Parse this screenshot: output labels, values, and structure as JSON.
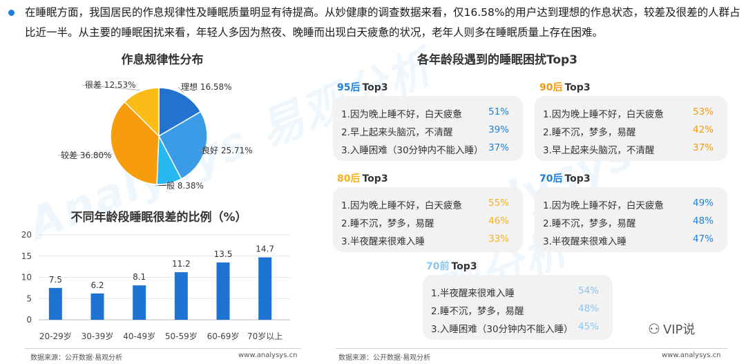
{
  "intro": "在睡眠方面，我国居民的作息规律性及睡眠质量明显有待提高。从妙健康的调查数据来看，仅16.58%的用户达到理想的作息状态，较差及很差的人群占比近一半。从主要的睡眠困扰来看，年轻人多因为熬夜、晚睡而出现白天疲惫的状况，老年人则多在睡眠质量上存在困难。",
  "watermark_text": "Analysys 易观分析",
  "colors": {
    "accent": "#1e7fd8",
    "orange": "#f7a21b",
    "lightblue": "#8ac6f0"
  },
  "chart_data": [
    {
      "type": "pie",
      "title": "作息规律性分布",
      "slices": [
        {
          "label": "理想 16.58%",
          "value": 16.58,
          "color": "#2472cf"
        },
        {
          "label": "良好 25.71%",
          "value": 25.71,
          "color": "#3a9be6"
        },
        {
          "label": "一般 8.38%",
          "value": 8.38,
          "color": "#29b7f0"
        },
        {
          "label": "较差 36.80%",
          "value": 36.8,
          "color": "#f79c0d"
        },
        {
          "label": "很差 12.53%",
          "value": 12.53,
          "color": "#fbbc18"
        }
      ]
    },
    {
      "type": "bar",
      "title": "不同年龄段睡眠很差的比例（%）",
      "categories": [
        "20-29岁",
        "30-39岁",
        "40-49岁",
        "50-59岁",
        "60-69岁",
        "70岁以上"
      ],
      "values": [
        7.5,
        6.2,
        8.1,
        11.2,
        13.5,
        14.7
      ],
      "value_labels": [
        "7.5",
        "6.2",
        "8.1",
        "11.2",
        "13.5",
        "14.7"
      ],
      "ylim": [
        0,
        20
      ],
      "yticks": [
        "0",
        "5",
        "10",
        "15",
        "20"
      ],
      "color": "#1e73d2"
    }
  ],
  "right_title": "各年龄段遇到的睡眠困扰Top3",
  "panels": [
    {
      "year": "95后",
      "suffix": "Top3",
      "year_color": "#1e7fd8",
      "pct_color": "#1e7fd8",
      "items": [
        {
          "text": "1.因为晚上睡不好，白天疲惫",
          "pct": "51%"
        },
        {
          "text": "2.早上起来头脑沉，不清醒",
          "pct": "39%"
        },
        {
          "text": "3.入睡困难（30分钟内不能入睡）",
          "pct": "37%"
        }
      ]
    },
    {
      "year": "90后",
      "suffix": "Top3",
      "year_color": "#f59a0c",
      "pct_color": "#f59a0c",
      "items": [
        {
          "text": "1.因为晚上睡不好，白天疲惫",
          "pct": "53%"
        },
        {
          "text": "2.睡不沉，梦多，易醒",
          "pct": "42%"
        },
        {
          "text": "3.早上起来头脑沉，不清醒",
          "pct": "37%"
        }
      ]
    },
    {
      "year": "80后",
      "suffix": "Top3",
      "year_color": "#f7b21d",
      "pct_color": "#f7b21d",
      "items": [
        {
          "text": "1.因为晚上睡不好，白天疲惫",
          "pct": "55%"
        },
        {
          "text": "2.睡不沉，梦多，易醒",
          "pct": "46%"
        },
        {
          "text": "3.半夜醒来很难入睡",
          "pct": "33%"
        }
      ]
    },
    {
      "year": "70后",
      "suffix": "Top3",
      "year_color": "#1e7fd8",
      "pct_color": "#1e7fd8",
      "items": [
        {
          "text": "1.因为晚上睡不好，白天疲惫",
          "pct": "49%"
        },
        {
          "text": "2.睡不沉，梦多，易醒",
          "pct": "48%"
        },
        {
          "text": "3.半夜醒来很难入睡",
          "pct": "47%"
        }
      ]
    },
    {
      "year": "70前",
      "suffix": "Top3",
      "year_color": "#8ac6f0",
      "pct_color": "#8ac6f0",
      "items": [
        {
          "text": "1.半夜醒来很难入睡",
          "pct": "54%"
        },
        {
          "text": "2.睡不沉，梦多，易醒",
          "pct": "48%"
        },
        {
          "text": "3.入睡困难（30分钟内不能入睡）",
          "pct": "45%"
        }
      ]
    }
  ],
  "source_left": "数据来源：公开数据·易观分析",
  "url_left": "www.analysys.cn",
  "source_right": "数据来源：公开数据·易观分析",
  "url_right": "www.analysys.cn",
  "logo_text": "VIP说",
  "logo_icon": "wechat-chat-icon"
}
